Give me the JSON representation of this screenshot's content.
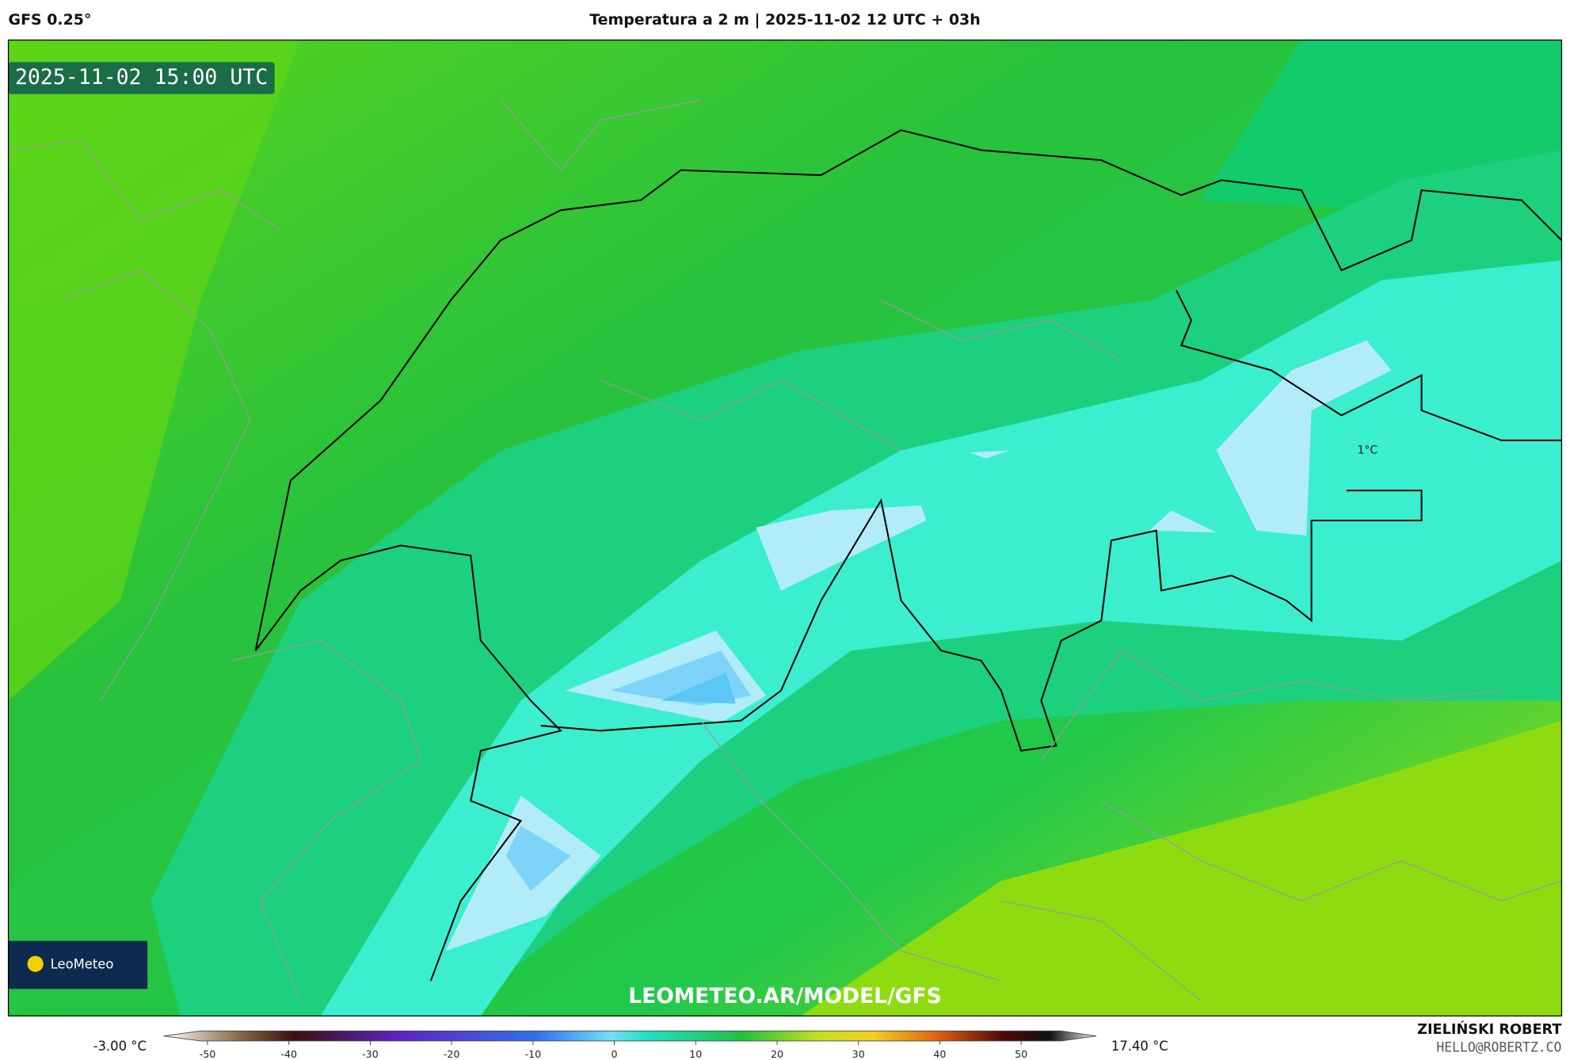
{
  "header": {
    "model": "GFS 0.25°",
    "title": "Temperatura a 2 m | 2025-11-02 12 UTC + 03h"
  },
  "map": {
    "valid_time": "2025-11-02 15:00 UTC",
    "contour_label": "1°C",
    "logo": "LeoMeteo",
    "watermark": "LEOMETEO.AR/MODEL/GFS"
  },
  "colorbar": {
    "min_label": "-3.00 °C",
    "max_label": "17.40 °C",
    "ticks": [
      -50,
      -40,
      -30,
      -20,
      -10,
      0,
      10,
      20,
      30,
      40,
      50
    ]
  },
  "footer": {
    "author": "ZIELIŃSKI ROBERT",
    "contact": "HELLO@ROBERTZ.CO"
  }
}
